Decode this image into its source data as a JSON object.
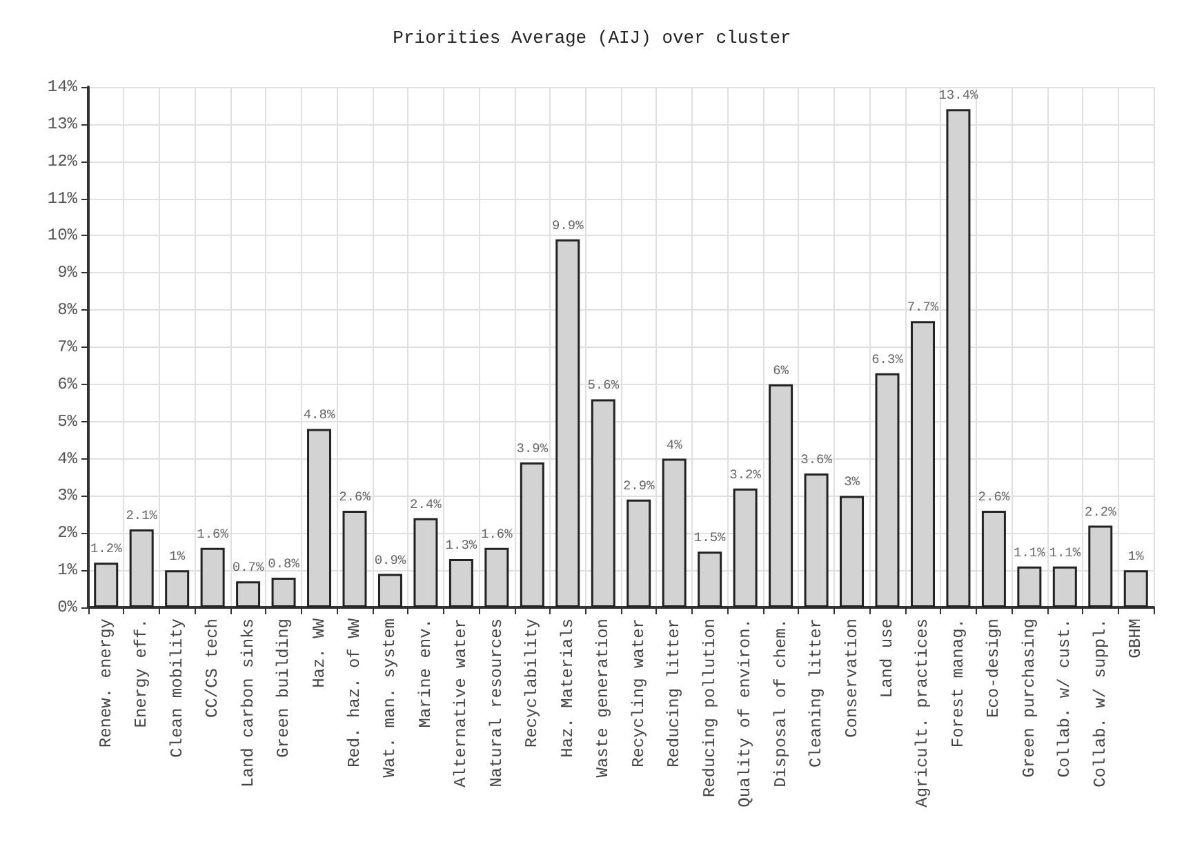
{
  "chart_data": {
    "type": "bar",
    "title": "Priorities Average (AIJ) over cluster",
    "categories": [
      "Renew. energy",
      "Energy eff.",
      "Clean mobility",
      "CC/CS tech",
      "Land carbon sinks",
      "Green building",
      "Haz. WW",
      "Red. haz. of WW",
      "Wat. man. system",
      "Marine env.",
      "Alternative water",
      "Natural resources",
      "Recyclability",
      "Haz. Materials",
      "Waste generation",
      "Recycling water",
      "Reducing litter",
      "Reducing pollution",
      "Quality of environ.",
      "Disposal of chem.",
      "Cleaning litter",
      "Conservation",
      "Land use",
      "Agricult. practices",
      "Forest manag.",
      "Eco-design",
      "Green purchasing",
      "Collab. w/ cust.",
      "Collab. w/ suppl.",
      "GBHM"
    ],
    "values": [
      1.2,
      2.1,
      1,
      1.6,
      0.7,
      0.8,
      4.8,
      2.6,
      0.9,
      2.4,
      1.3,
      1.6,
      3.9,
      9.9,
      5.6,
      2.9,
      4,
      1.5,
      3.2,
      6,
      3.6,
      3,
      6.3,
      7.7,
      13.4,
      2.6,
      1.1,
      1.1,
      2.2,
      1
    ],
    "value_labels": [
      "1.2%",
      "2.1%",
      "1%",
      "1.6%",
      "0.7%",
      "0.8%",
      "4.8%",
      "2.6%",
      "0.9%",
      "2.4%",
      "1.3%",
      "1.6%",
      "3.9%",
      "9.9%",
      "5.6%",
      "2.9%",
      "4%",
      "1.5%",
      "3.2%",
      "6%",
      "3.6%",
      "3%",
      "6.3%",
      "7.7%",
      "13.4%",
      "2.6%",
      "1.1%",
      "1.1%",
      "2.2%",
      "1%"
    ],
    "color": "#d3d3d3",
    "ylim": [
      0,
      14
    ],
    "yticks": [
      {
        "value": 0,
        "label": "0%"
      },
      {
        "value": 1,
        "label": "1%"
      },
      {
        "value": 2,
        "label": "2%"
      },
      {
        "value": 3,
        "label": "3%"
      },
      {
        "value": 4,
        "label": "4%"
      },
      {
        "value": 5,
        "label": "5%"
      },
      {
        "value": 6,
        "label": "6%"
      },
      {
        "value": 7,
        "label": "7%"
      },
      {
        "value": 8,
        "label": "8%"
      },
      {
        "value": 9,
        "label": "9%"
      },
      {
        "value": 10,
        "label": "10%"
      },
      {
        "value": 11,
        "label": "11%"
      },
      {
        "value": 12,
        "label": "12%"
      },
      {
        "value": 13,
        "label": "13%"
      },
      {
        "value": 14,
        "label": "14%"
      }
    ],
    "grid": true
  }
}
